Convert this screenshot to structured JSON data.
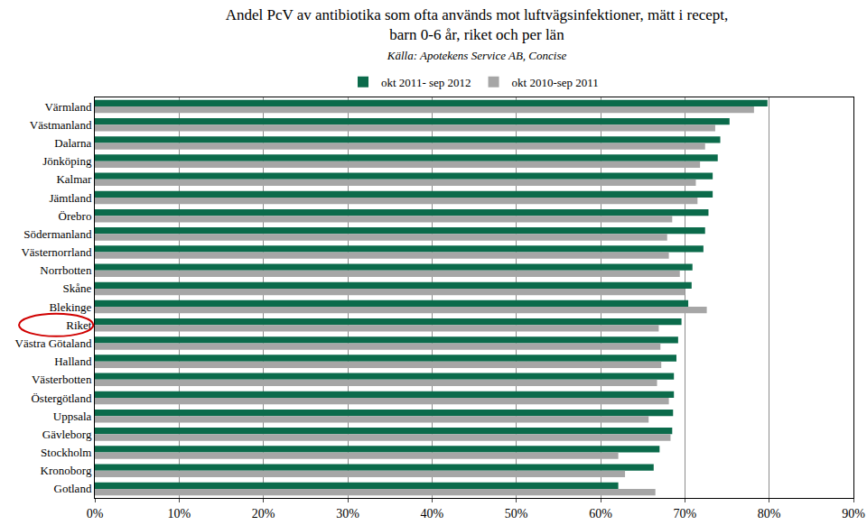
{
  "chart_data": {
    "type": "bar",
    "orientation": "horizontal",
    "title": "Andel PcV av antibiotika som ofta används mot luftvägsinfektioner, mätt i recept,\nbarn 0-6 år, riket och per län",
    "subtitle": "Källa: Apotekens Service AB, Concise",
    "categories": [
      "Värmland",
      "Västmanland",
      "Dalarna",
      "Jönköping",
      "Kalmar",
      "Jämtland",
      "Örebro",
      "Södermanland",
      "Västernorrland",
      "Norrbotten",
      "Skåne",
      "Blekinge",
      "Riket",
      "Västra Götaland",
      "Halland",
      "Västerbotten",
      "Östergötland",
      "Uppsala",
      "Gävleborg",
      "Stockholm",
      "Kronoborg",
      "Gotland"
    ],
    "series": [
      {
        "name": "okt 2011- sep 2012",
        "color": "#0b6b4b",
        "values": [
          79.8,
          75.3,
          74.2,
          73.9,
          73.3,
          73.3,
          72.8,
          72.4,
          72.2,
          70.9,
          70.8,
          70.4,
          69.6,
          69.2,
          69.0,
          68.7,
          68.7,
          68.6,
          68.5,
          67.0,
          66.3,
          62.1
        ]
      },
      {
        "name": "okt 2010-sep 2011",
        "color": "#a6a6a6",
        "values": [
          78.2,
          73.6,
          72.4,
          71.8,
          71.3,
          71.5,
          68.5,
          67.9,
          68.1,
          69.4,
          70.0,
          72.6,
          66.9,
          67.1,
          67.2,
          66.7,
          68.1,
          65.7,
          68.3,
          62.1,
          62.9,
          66.5
        ]
      }
    ],
    "xlim": [
      0,
      90
    ],
    "xticks": [
      {
        "value": 0,
        "label": "0%"
      },
      {
        "value": 10,
        "label": "10%"
      },
      {
        "value": 20,
        "label": "20%"
      },
      {
        "value": 30,
        "label": "30%"
      },
      {
        "value": 40,
        "label": "40%"
      },
      {
        "value": 50,
        "label": "50%"
      },
      {
        "value": 60,
        "label": "60%"
      },
      {
        "value": 70,
        "label": "70%"
      },
      {
        "value": 80,
        "label": "80%"
      },
      {
        "value": 90,
        "label": "90%"
      }
    ],
    "grid": true,
    "legend": "top",
    "data_labels": false
  }
}
